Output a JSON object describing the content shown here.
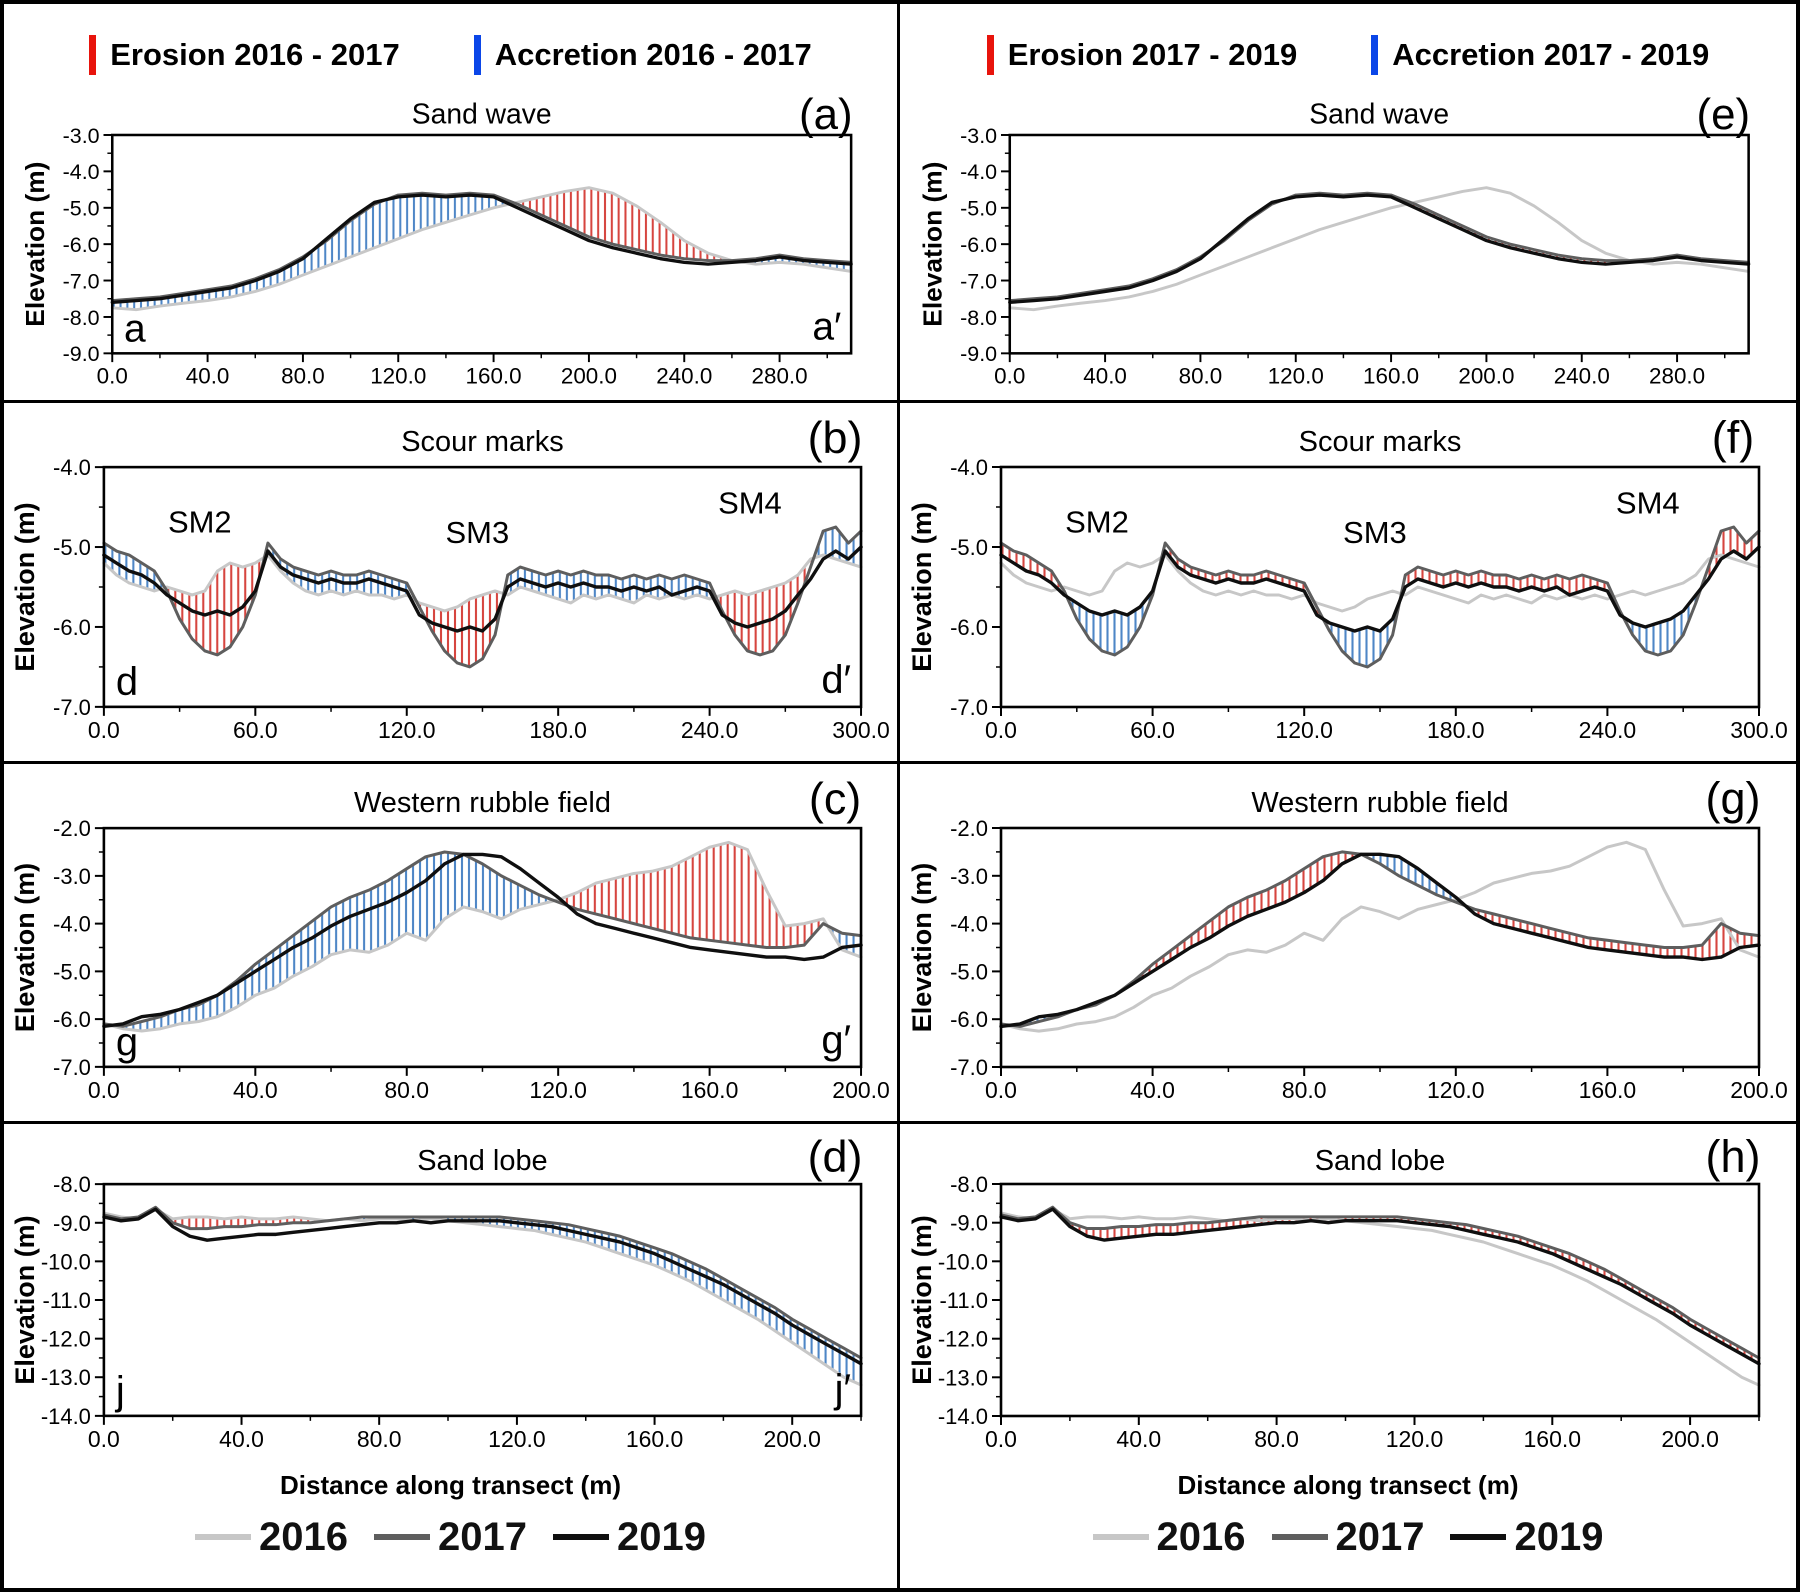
{
  "figure": {
    "legends_top": [
      {
        "erosion": "Erosion 2016 - 2017",
        "accretion": "Accretion 2016 - 2017"
      },
      {
        "erosion": "Erosion 2017 - 2019",
        "accretion": "Accretion 2017 - 2019"
      }
    ],
    "xlabel": "Distance along transect (m)",
    "ylabel": "Elevation (m)",
    "legend_bottom": [
      {
        "label": "2016"
      },
      {
        "label": "2017"
      },
      {
        "label": "2019"
      }
    ]
  },
  "chart_data": {
    "type": "line",
    "ylabel": "Elevation (m)",
    "xlabel": "Distance along transect (m)",
    "series_colors": {
      "y2016": "#c7c7c7",
      "y2017": "#5e5e5e",
      "y2019": "#0f0f0f"
    },
    "hatch_colors": {
      "erosion": "#d6453f",
      "accretion": "#4e86c6"
    },
    "features": [
      {
        "id": "sandwave",
        "title": "Sand wave",
        "xlim": [
          0,
          310
        ],
        "ylim": [
          -9,
          -3
        ],
        "xticks": [
          0,
          40,
          80,
          120,
          160,
          200,
          240,
          280
        ],
        "xminor_step": 20,
        "x": [
          0,
          10,
          20,
          30,
          40,
          50,
          60,
          70,
          80,
          90,
          100,
          110,
          120,
          130,
          140,
          150,
          160,
          170,
          180,
          190,
          200,
          210,
          220,
          230,
          240,
          250,
          260,
          270,
          280,
          290,
          300,
          310
        ],
        "y2016": [
          -7.75,
          -7.8,
          -7.7,
          -7.62,
          -7.55,
          -7.45,
          -7.3,
          -7.1,
          -6.85,
          -6.6,
          -6.35,
          -6.1,
          -5.85,
          -5.6,
          -5.4,
          -5.2,
          -5.0,
          -4.85,
          -4.7,
          -4.55,
          -4.45,
          -4.6,
          -4.95,
          -5.4,
          -5.9,
          -6.25,
          -6.45,
          -6.55,
          -6.5,
          -6.55,
          -6.65,
          -6.75
        ],
        "y2017": [
          -7.55,
          -7.5,
          -7.45,
          -7.35,
          -7.25,
          -7.15,
          -6.95,
          -6.7,
          -6.35,
          -5.9,
          -5.35,
          -4.9,
          -4.65,
          -4.6,
          -4.65,
          -4.6,
          -4.65,
          -4.9,
          -5.2,
          -5.5,
          -5.8,
          -6.0,
          -6.15,
          -6.3,
          -6.4,
          -6.45,
          -6.45,
          -6.4,
          -6.3,
          -6.4,
          -6.45,
          -6.5
        ],
        "y2019": [
          -7.6,
          -7.55,
          -7.5,
          -7.4,
          -7.3,
          -7.2,
          -7.0,
          -6.75,
          -6.4,
          -5.85,
          -5.3,
          -4.85,
          -4.7,
          -4.65,
          -4.7,
          -4.65,
          -4.7,
          -5.0,
          -5.3,
          -5.6,
          -5.9,
          -6.1,
          -6.25,
          -6.4,
          -6.5,
          -6.55,
          -6.5,
          -6.45,
          -6.35,
          -6.45,
          -6.5,
          -6.55
        ]
      },
      {
        "id": "scour",
        "title": "Scour marks",
        "xlim": [
          0,
          300
        ],
        "ylim": [
          -7,
          -4
        ],
        "xticks": [
          0,
          60,
          120,
          180,
          240,
          300
        ],
        "xminor_step": 30,
        "annotations": [
          {
            "text": "SM2",
            "x": 38,
            "y": -4.82
          },
          {
            "text": "SM3",
            "x": 148,
            "y": -4.95
          },
          {
            "text": "SM4",
            "x": 256,
            "y": -4.58
          }
        ],
        "x": [
          0,
          5,
          10,
          15,
          20,
          25,
          30,
          35,
          40,
          45,
          50,
          55,
          60,
          65,
          70,
          75,
          80,
          85,
          90,
          95,
          100,
          105,
          110,
          115,
          120,
          125,
          130,
          135,
          140,
          145,
          150,
          155,
          160,
          165,
          170,
          175,
          180,
          185,
          190,
          195,
          200,
          205,
          210,
          215,
          220,
          225,
          230,
          235,
          240,
          245,
          250,
          255,
          260,
          265,
          270,
          275,
          280,
          285,
          290,
          295,
          300
        ],
        "y2016": [
          -5.2,
          -5.35,
          -5.45,
          -5.5,
          -5.55,
          -5.5,
          -5.55,
          -5.6,
          -5.55,
          -5.3,
          -5.2,
          -5.25,
          -5.2,
          -5.1,
          -5.3,
          -5.45,
          -5.55,
          -5.6,
          -5.55,
          -5.6,
          -5.55,
          -5.6,
          -5.6,
          -5.65,
          -5.6,
          -5.7,
          -5.75,
          -5.8,
          -5.75,
          -5.65,
          -5.6,
          -5.55,
          -5.6,
          -5.5,
          -5.55,
          -5.6,
          -5.65,
          -5.7,
          -5.6,
          -5.65,
          -5.6,
          -5.65,
          -5.7,
          -5.6,
          -5.65,
          -5.6,
          -5.65,
          -5.6,
          -5.65,
          -5.6,
          -5.55,
          -5.6,
          -5.55,
          -5.5,
          -5.45,
          -5.35,
          -5.15,
          -5.1,
          -5.15,
          -5.2,
          -5.25
        ],
        "y2017": [
          -4.95,
          -5.05,
          -5.1,
          -5.2,
          -5.3,
          -5.55,
          -5.9,
          -6.15,
          -6.3,
          -6.35,
          -6.25,
          -6.0,
          -5.6,
          -4.95,
          -5.15,
          -5.25,
          -5.3,
          -5.35,
          -5.3,
          -5.35,
          -5.35,
          -5.3,
          -5.35,
          -5.4,
          -5.45,
          -5.75,
          -6.05,
          -6.3,
          -6.45,
          -6.5,
          -6.4,
          -6.1,
          -5.35,
          -5.25,
          -5.3,
          -5.35,
          -5.3,
          -5.35,
          -5.3,
          -5.35,
          -5.35,
          -5.4,
          -5.35,
          -5.4,
          -5.35,
          -5.4,
          -5.35,
          -5.4,
          -5.45,
          -5.8,
          -6.1,
          -6.3,
          -6.35,
          -6.3,
          -6.1,
          -5.7,
          -5.25,
          -4.8,
          -4.75,
          -4.95,
          -4.8
        ],
        "y2019": [
          -5.1,
          -5.2,
          -5.3,
          -5.35,
          -5.45,
          -5.6,
          -5.7,
          -5.8,
          -5.85,
          -5.8,
          -5.85,
          -5.75,
          -5.55,
          -5.05,
          -5.25,
          -5.35,
          -5.4,
          -5.45,
          -5.4,
          -5.45,
          -5.45,
          -5.4,
          -5.45,
          -5.5,
          -5.55,
          -5.85,
          -5.95,
          -6.0,
          -6.05,
          -6.0,
          -6.05,
          -5.9,
          -5.5,
          -5.4,
          -5.45,
          -5.5,
          -5.45,
          -5.5,
          -5.45,
          -5.5,
          -5.5,
          -5.55,
          -5.5,
          -5.55,
          -5.5,
          -5.6,
          -5.55,
          -5.5,
          -5.55,
          -5.85,
          -5.95,
          -6.0,
          -5.95,
          -5.9,
          -5.8,
          -5.6,
          -5.4,
          -5.15,
          -5.05,
          -5.15,
          -5.0
        ]
      },
      {
        "id": "rubble",
        "title": "Western rubble field",
        "xlim": [
          0,
          200
        ],
        "ylim": [
          -7,
          -2
        ],
        "xticks": [
          0,
          40,
          80,
          120,
          160,
          200
        ],
        "xminor_step": 20,
        "x": [
          0,
          5,
          10,
          15,
          20,
          25,
          30,
          35,
          40,
          45,
          50,
          55,
          60,
          65,
          70,
          75,
          80,
          85,
          90,
          95,
          100,
          105,
          110,
          115,
          120,
          125,
          130,
          135,
          140,
          145,
          150,
          155,
          160,
          165,
          170,
          175,
          180,
          185,
          190,
          195,
          200
        ],
        "y2016": [
          -6.1,
          -6.2,
          -6.25,
          -6.2,
          -6.1,
          -6.05,
          -5.95,
          -5.75,
          -5.5,
          -5.35,
          -5.1,
          -4.9,
          -4.65,
          -4.55,
          -4.6,
          -4.45,
          -4.2,
          -4.35,
          -3.9,
          -3.65,
          -3.75,
          -3.9,
          -3.7,
          -3.6,
          -3.5,
          -3.35,
          -3.15,
          -3.05,
          -2.95,
          -2.9,
          -2.8,
          -2.6,
          -2.4,
          -2.3,
          -2.45,
          -3.3,
          -4.05,
          -4.0,
          -3.9,
          -4.55,
          -4.7
        ],
        "y2017": [
          -6.1,
          -6.15,
          -6.05,
          -5.95,
          -5.8,
          -5.7,
          -5.5,
          -5.2,
          -4.85,
          -4.55,
          -4.25,
          -3.95,
          -3.65,
          -3.45,
          -3.3,
          -3.1,
          -2.85,
          -2.6,
          -2.5,
          -2.55,
          -2.75,
          -3.0,
          -3.2,
          -3.4,
          -3.55,
          -3.7,
          -3.8,
          -3.9,
          -4.0,
          -4.1,
          -4.2,
          -4.3,
          -4.35,
          -4.4,
          -4.45,
          -4.5,
          -4.5,
          -4.45,
          -4.0,
          -4.2,
          -4.25
        ],
        "y2019": [
          -6.15,
          -6.1,
          -5.95,
          -5.9,
          -5.8,
          -5.65,
          -5.5,
          -5.25,
          -5.0,
          -4.75,
          -4.5,
          -4.3,
          -4.05,
          -3.85,
          -3.7,
          -3.55,
          -3.35,
          -3.1,
          -2.75,
          -2.55,
          -2.55,
          -2.6,
          -2.85,
          -3.15,
          -3.45,
          -3.8,
          -4.0,
          -4.1,
          -4.2,
          -4.3,
          -4.4,
          -4.5,
          -4.55,
          -4.6,
          -4.65,
          -4.7,
          -4.7,
          -4.75,
          -4.7,
          -4.5,
          -4.45
        ]
      },
      {
        "id": "lobe",
        "title": "Sand lobe",
        "xlim": [
          0,
          220
        ],
        "ylim": [
          -14,
          -8
        ],
        "xticks": [
          0,
          40,
          80,
          120,
          160,
          200
        ],
        "xminor_step": 20,
        "x": [
          0,
          5,
          10,
          15,
          20,
          25,
          30,
          35,
          40,
          45,
          50,
          55,
          60,
          65,
          70,
          75,
          80,
          85,
          90,
          95,
          100,
          105,
          110,
          115,
          120,
          125,
          130,
          135,
          140,
          145,
          150,
          155,
          160,
          165,
          170,
          175,
          180,
          185,
          190,
          195,
          200,
          205,
          210,
          215,
          220
        ],
        "y2016": [
          -8.75,
          -8.85,
          -8.9,
          -8.65,
          -8.9,
          -8.85,
          -8.85,
          -8.9,
          -8.85,
          -8.9,
          -8.9,
          -8.85,
          -8.9,
          -8.95,
          -8.9,
          -8.95,
          -8.9,
          -8.9,
          -8.95,
          -8.9,
          -8.95,
          -9.0,
          -9.05,
          -9.1,
          -9.15,
          -9.2,
          -9.3,
          -9.4,
          -9.5,
          -9.65,
          -9.8,
          -9.95,
          -10.1,
          -10.3,
          -10.5,
          -10.75,
          -11.0,
          -11.25,
          -11.5,
          -11.8,
          -12.1,
          -12.4,
          -12.7,
          -13.0,
          -13.2
        ],
        "y2017": [
          -8.8,
          -8.9,
          -8.85,
          -8.6,
          -9.0,
          -9.15,
          -9.15,
          -9.1,
          -9.1,
          -9.05,
          -9.05,
          -9.0,
          -9.0,
          -8.95,
          -8.9,
          -8.85,
          -8.85,
          -8.85,
          -8.85,
          -8.85,
          -8.85,
          -8.85,
          -8.85,
          -8.85,
          -8.9,
          -8.95,
          -9.0,
          -9.05,
          -9.15,
          -9.25,
          -9.35,
          -9.5,
          -9.65,
          -9.8,
          -10.0,
          -10.2,
          -10.45,
          -10.7,
          -10.95,
          -11.2,
          -11.5,
          -11.75,
          -12.0,
          -12.25,
          -12.5
        ],
        "y2019": [
          -8.85,
          -8.95,
          -8.9,
          -8.65,
          -9.1,
          -9.35,
          -9.45,
          -9.4,
          -9.35,
          -9.3,
          -9.3,
          -9.25,
          -9.2,
          -9.15,
          -9.1,
          -9.05,
          -9.0,
          -9.0,
          -8.95,
          -9.0,
          -8.95,
          -8.95,
          -8.95,
          -8.95,
          -9.0,
          -9.05,
          -9.1,
          -9.2,
          -9.3,
          -9.4,
          -9.5,
          -9.65,
          -9.8,
          -10.0,
          -10.2,
          -10.4,
          -10.6,
          -10.85,
          -11.1,
          -11.35,
          -11.65,
          -11.9,
          -12.15,
          -12.4,
          -12.65
        ]
      }
    ],
    "panels": [
      {
        "id": "a",
        "feature": "sandwave",
        "letter": "(a)",
        "pair": [
          "y2016",
          "y2017"
        ],
        "corners": [
          "a",
          "a′"
        ]
      },
      {
        "id": "e",
        "feature": "sandwave",
        "letter": "(e)",
        "pair": [
          "y2017",
          "y2019"
        ]
      },
      {
        "id": "b",
        "feature": "scour",
        "letter": "(b)",
        "pair": [
          "y2016",
          "y2017"
        ],
        "corners": [
          "d",
          "d′"
        ]
      },
      {
        "id": "f",
        "feature": "scour",
        "letter": "(f)",
        "pair": [
          "y2017",
          "y2019"
        ]
      },
      {
        "id": "c",
        "feature": "rubble",
        "letter": "(c)",
        "pair": [
          "y2016",
          "y2017"
        ],
        "corners": [
          "g",
          "g′"
        ]
      },
      {
        "id": "g",
        "feature": "rubble",
        "letter": "(g)",
        "pair": [
          "y2017",
          "y2019"
        ]
      },
      {
        "id": "d",
        "feature": "lobe",
        "letter": "(d)",
        "pair": [
          "y2016",
          "y2017"
        ],
        "corners": [
          "j",
          "j′"
        ]
      },
      {
        "id": "h",
        "feature": "lobe",
        "letter": "(h)",
        "pair": [
          "y2017",
          "y2019"
        ]
      }
    ]
  }
}
